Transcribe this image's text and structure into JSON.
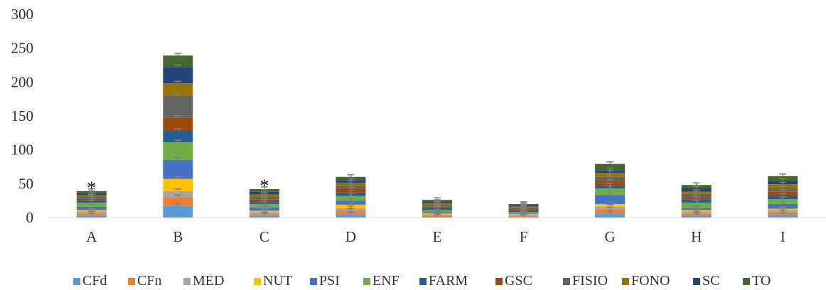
{
  "chart_data": {
    "type": "bar",
    "stacked": true,
    "categories": [
      "A",
      "B",
      "C",
      "D",
      "E",
      "F",
      "G",
      "H",
      "I"
    ],
    "ylim": [
      0,
      300
    ],
    "yticks": [
      0,
      50,
      100,
      150,
      200,
      250,
      300
    ],
    "grid": false,
    "legend": "bottom",
    "series": [
      {
        "name": "CFd",
        "color": "#5B9BD5",
        "values": [
          3,
          17,
          3,
          5,
          1,
          1,
          6,
          3,
          4
        ]
      },
      {
        "name": "CFn",
        "color": "#ED7D31",
        "values": [
          3,
          13,
          2,
          5,
          2,
          1,
          6,
          3,
          4
        ]
      },
      {
        "name": "MED",
        "color": "#A5A5A5",
        "values": [
          3,
          9,
          3,
          4,
          2,
          2,
          4,
          3,
          3
        ]
      },
      {
        "name": "NUT",
        "color": "#FFC000",
        "values": [
          2,
          18,
          2,
          5,
          1,
          1,
          4,
          2,
          2
        ]
      },
      {
        "name": "PSI",
        "color": "#4472C4",
        "values": [
          5,
          28,
          5,
          6,
          2,
          1,
          13,
          3,
          7
        ]
      },
      {
        "name": "ENF",
        "color": "#70AD47",
        "values": [
          6,
          26,
          5,
          7,
          3,
          2,
          10,
          8,
          7
        ]
      },
      {
        "name": "FARM",
        "color": "#255E91",
        "values": [
          3,
          17,
          3,
          5,
          3,
          2,
          4,
          5,
          5
        ]
      },
      {
        "name": "GSC",
        "color": "#9E480E",
        "values": [
          3,
          19,
          4,
          5,
          2,
          2,
          6,
          3,
          6
        ]
      },
      {
        "name": "FISIO",
        "color": "#636363",
        "values": [
          3,
          33,
          4,
          5,
          3,
          2,
          7,
          5,
          5
        ]
      },
      {
        "name": "FONO",
        "color": "#997300",
        "values": [
          2,
          18,
          3,
          4,
          2,
          2,
          6,
          3,
          6
        ]
      },
      {
        "name": "SC",
        "color": "#264478",
        "values": [
          3,
          24,
          4,
          4,
          2,
          2,
          4,
          5,
          5
        ]
      },
      {
        "name": "TO",
        "color": "#43682B",
        "values": [
          3,
          17,
          4,
          5,
          3,
          2,
          9,
          5,
          7
        ]
      }
    ],
    "annotations": [
      {
        "category": "A",
        "text": "*",
        "y": 45
      },
      {
        "category": "C",
        "text": "*",
        "y": 48
      }
    ]
  }
}
